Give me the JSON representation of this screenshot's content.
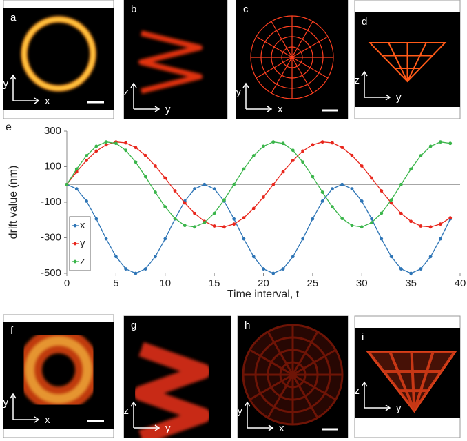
{
  "panels": [
    {
      "label": "a",
      "axis_labels": [
        "y",
        "x"
      ]
    },
    {
      "label": "b",
      "axis_labels": [
        "z",
        "y"
      ]
    },
    {
      "label": "c",
      "axis_labels": [
        "y",
        "x"
      ]
    },
    {
      "label": "d",
      "axis_labels": [
        "z",
        "y"
      ]
    },
    {
      "label": "f",
      "axis_labels": [
        "y",
        "x"
      ]
    },
    {
      "label": "g",
      "axis_labels": [
        "z",
        "y"
      ]
    },
    {
      "label": "h",
      "axis_labels": [
        "y",
        "x"
      ]
    },
    {
      "label": "i",
      "axis_labels": [
        "z",
        "y"
      ]
    }
  ],
  "chart_data": {
    "type": "line",
    "panel_label": "e",
    "xlabel": "Time interval, t",
    "ylabel": "drift value (nm)",
    "x": [
      0,
      1,
      2,
      3,
      4,
      5,
      6,
      7,
      8,
      9,
      10,
      11,
      12,
      13,
      14,
      15,
      16,
      17,
      18,
      19,
      20,
      21,
      22,
      23,
      24,
      25,
      26,
      27,
      28,
      29,
      30,
      31,
      32,
      33,
      34,
      35,
      36,
      37,
      38,
      39
    ],
    "series": [
      {
        "name": "x",
        "color": "#2e75b6",
        "values": [
          0,
          -25,
          -94,
          -194,
          -306,
          -406,
          -475,
          -500,
          -475,
          -406,
          -306,
          -194,
          -94,
          -25,
          0,
          -25,
          -94,
          -194,
          -306,
          -406,
          -475,
          -500,
          -475,
          -406,
          -306,
          -194,
          -94,
          -25,
          0,
          -25,
          -94,
          -194,
          -306,
          -406,
          -475,
          -500,
          -475,
          -406,
          -306,
          -194
        ]
      },
      {
        "name": "y",
        "color": "#e8261c",
        "values": [
          0,
          71,
          135,
          188,
          223,
          239,
          234,
          208,
          163,
          104,
          36,
          -36,
          -104,
          -163,
          -208,
          -234,
          -239,
          -223,
          -188,
          -135,
          -71,
          0,
          71,
          135,
          188,
          223,
          239,
          234,
          208,
          163,
          104,
          36,
          -36,
          -104,
          -163,
          -208,
          -234,
          -239,
          -223,
          -188
        ]
      },
      {
        "name": "z",
        "color": "#3ab54a",
        "values": [
          0,
          87,
          162,
          215,
          239,
          231,
          192,
          126,
          44,
          -44,
          -126,
          -192,
          -231,
          -239,
          -215,
          -162,
          -87,
          0,
          87,
          162,
          215,
          239,
          231,
          192,
          126,
          44,
          -44,
          -126,
          -192,
          -231,
          -239,
          -215,
          -162,
          -87,
          0,
          87,
          162,
          215,
          239,
          231
        ]
      }
    ],
    "xlim": [
      0,
      40
    ],
    "xticks": [
      0,
      5,
      10,
      15,
      20,
      25,
      30,
      35,
      40
    ],
    "ylim": [
      -500,
      300
    ],
    "yticks": [
      300,
      100,
      -100,
      -300,
      -500
    ],
    "grid": false,
    "legend": "lower left"
  }
}
